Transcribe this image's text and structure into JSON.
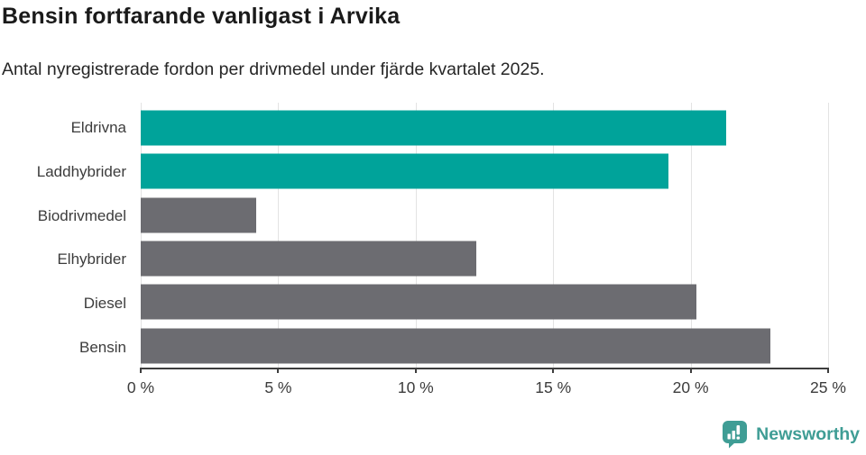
{
  "header": {
    "title": "Bensin fortfarande vanligast i Arvika",
    "subtitle": "Antal nyregistrerade fordon per drivmedel under fjärde kvartalet 2025."
  },
  "chart_data": {
    "type": "bar",
    "orientation": "horizontal",
    "title": "Bensin fortfarande vanligast i Arvika",
    "subtitle": "Antal nyregistrerade fordon per drivmedel under fjärde kvartalet 2025.",
    "categories": [
      "Eldrivna",
      "Laddhybrider",
      "Biodrivmedel",
      "Elhybrider",
      "Diesel",
      "Bensin"
    ],
    "values": [
      21.3,
      19.2,
      4.2,
      12.2,
      20.2,
      22.9
    ],
    "unit": "%",
    "xlabel": "",
    "ylabel": "",
    "xlim": [
      0,
      25
    ],
    "x_tick_values": [
      0,
      5,
      10,
      15,
      20,
      25
    ],
    "x_tick_labels": [
      "0 %",
      "5 %",
      "10 %",
      "15 %",
      "20 %",
      "25 %"
    ],
    "grid": "vertical-only",
    "legend": "none",
    "bar_colors": [
      "#00a39a",
      "#00a39a",
      "#6c6c71",
      "#6c6c71",
      "#6c6c71",
      "#6c6c71"
    ],
    "colors": {
      "highlight": "#00a39a",
      "default": "#6c6c71",
      "gridline": "#e3e3e3",
      "axis": "#3d3d3d",
      "text": "#3c3c3c"
    }
  },
  "footer": {
    "brand": "Newsworthy",
    "logo_color": "#3f9d95",
    "logo_icon": "bar-chart-speech-bubble"
  }
}
